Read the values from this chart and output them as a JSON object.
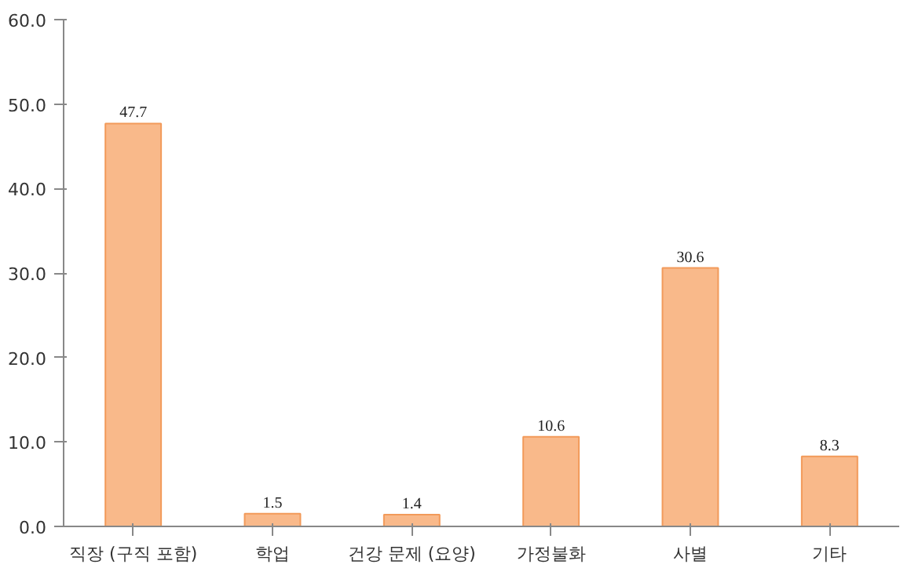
{
  "chart_data": {
    "type": "bar",
    "categories": [
      "직장 (구직 포함)",
      "학업",
      "건강 문제 (요양)",
      "가정불화",
      "사별",
      "기타"
    ],
    "values": [
      47.7,
      1.5,
      1.4,
      10.6,
      30.6,
      8.3
    ],
    "color": "#f9b98a",
    "ylim": [
      0,
      60
    ],
    "yticks": [
      {
        "value": 0,
        "label": "0.0"
      },
      {
        "value": 10,
        "label": "10.0"
      },
      {
        "value": 20,
        "label": "20.0"
      },
      {
        "value": 30,
        "label": "30.0"
      },
      {
        "value": 40,
        "label": "40.0"
      },
      {
        "value": 50,
        "label": "50.0"
      },
      {
        "value": 60,
        "label": "60.0"
      }
    ],
    "data_labels": true,
    "grid": false
  }
}
